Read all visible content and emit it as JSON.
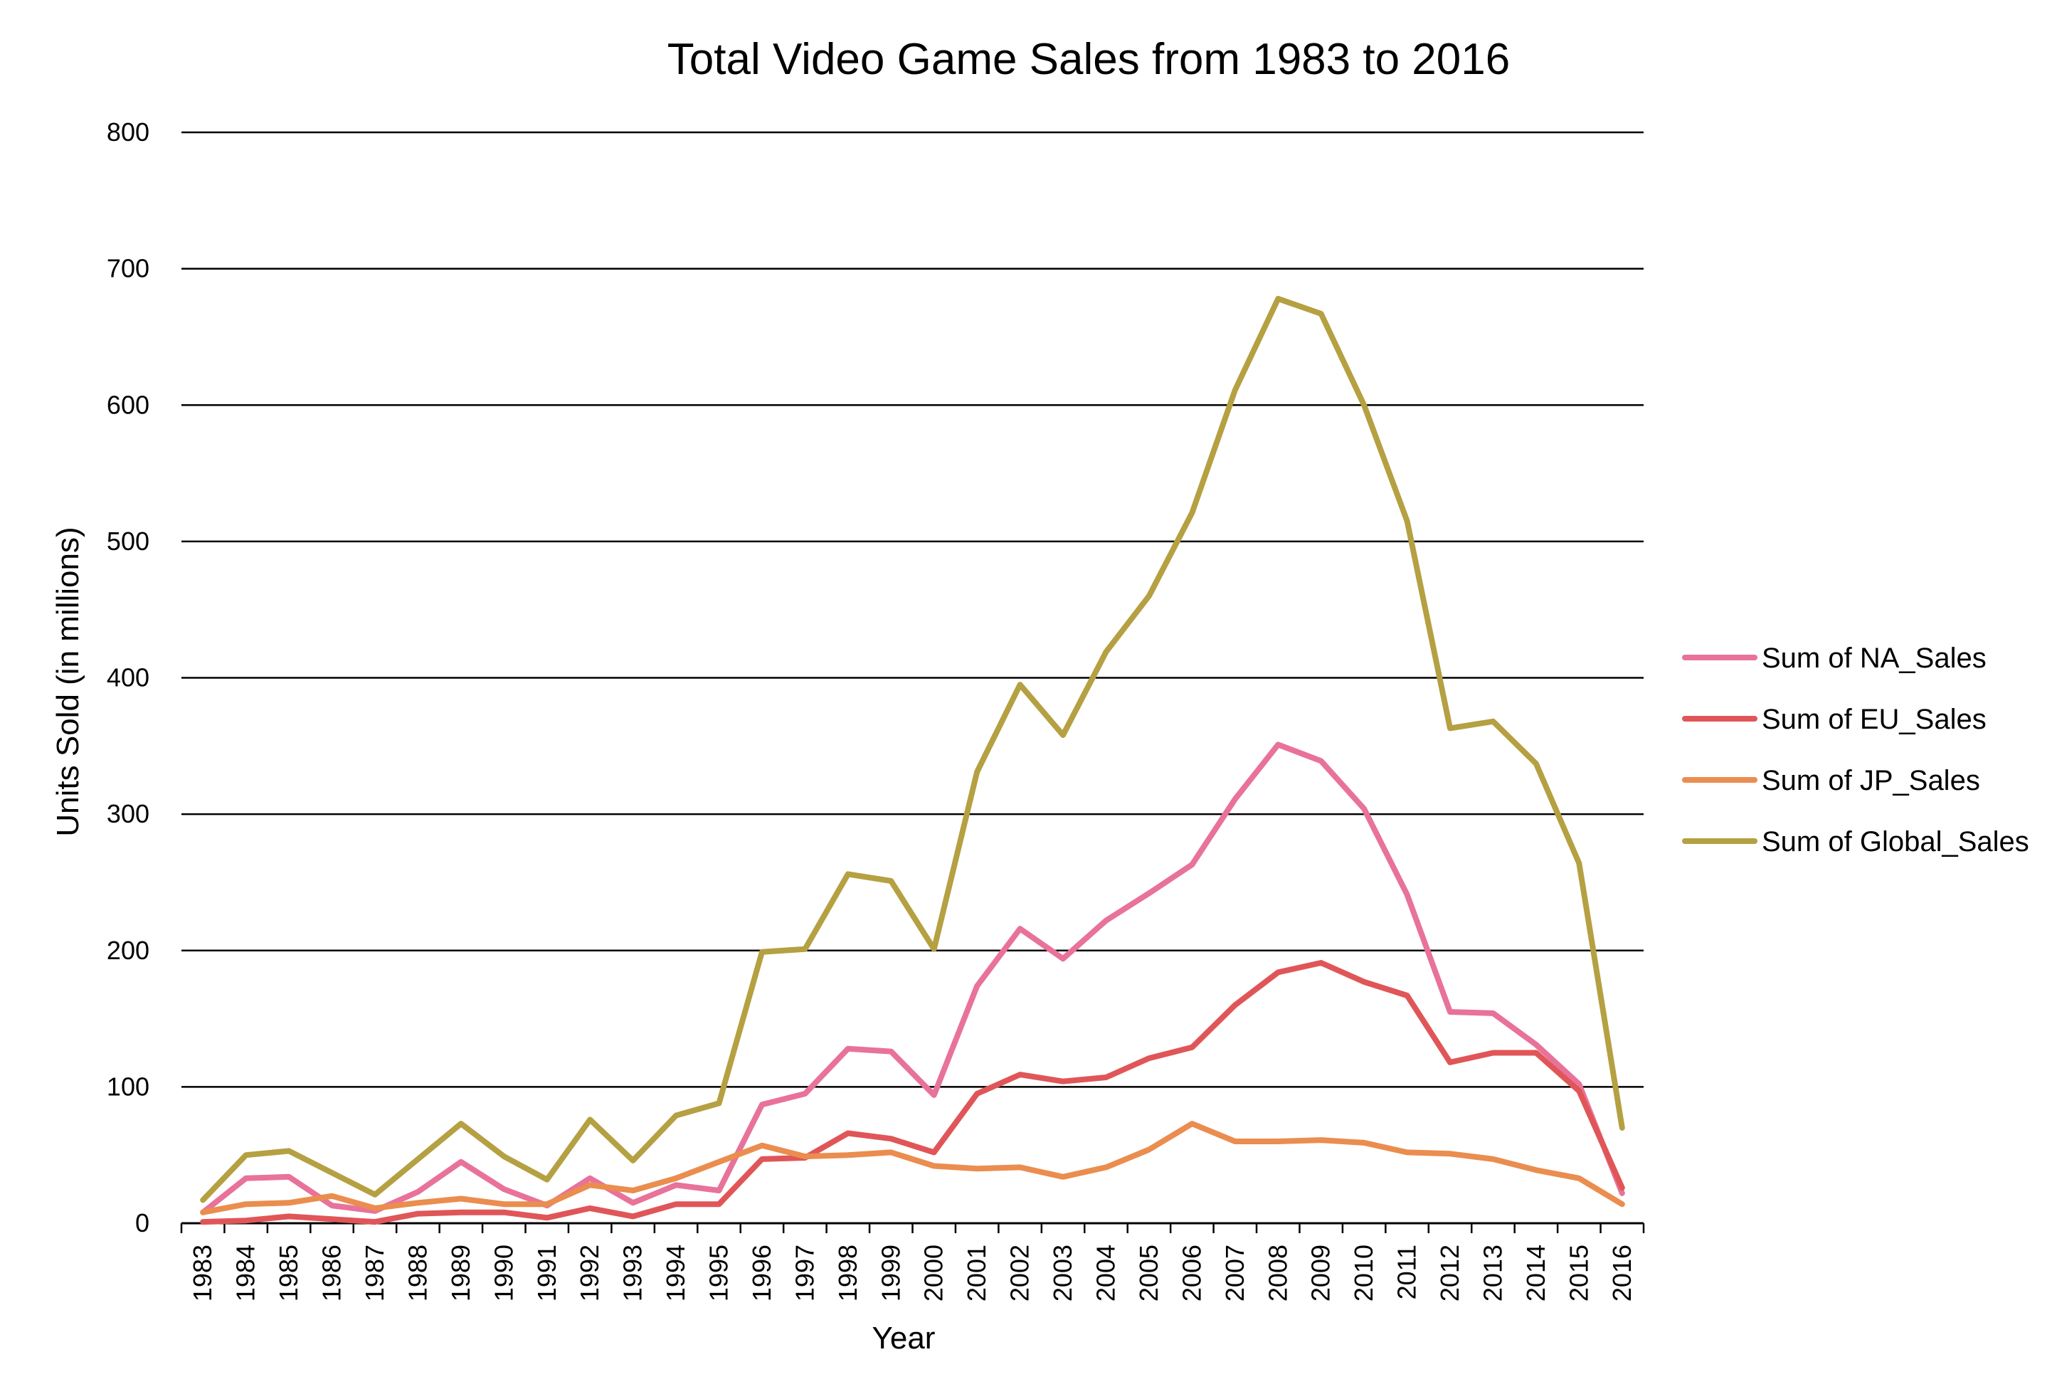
{
  "chart_data": {
    "type": "line",
    "title": "Total Video Game Sales from 1983 to 2016",
    "xlabel": "Year",
    "ylabel": "Units Sold (in millions)",
    "ylim": [
      0,
      800
    ],
    "yticks": [
      0,
      100,
      200,
      300,
      400,
      500,
      600,
      700,
      800
    ],
    "grid": "horizontal",
    "legend_position": "right",
    "categories": [
      "1983",
      "1984",
      "1985",
      "1986",
      "1987",
      "1988",
      "1989",
      "1990",
      "1991",
      "1992",
      "1993",
      "1994",
      "1995",
      "1996",
      "1997",
      "1998",
      "1999",
      "2000",
      "2001",
      "2002",
      "2003",
      "2004",
      "2005",
      "2006",
      "2007",
      "2008",
      "2009",
      "2010",
      "2011",
      "2012",
      "2013",
      "2014",
      "2015",
      "2016"
    ],
    "series": [
      {
        "name": "Sum of NA_Sales",
        "color": "#E8729A",
        "values": [
          8,
          33,
          34,
          13,
          9,
          23,
          45,
          25,
          13,
          33,
          15,
          28,
          24,
          87,
          95,
          128,
          126,
          94,
          174,
          216,
          194,
          222,
          242,
          263,
          311,
          351,
          339,
          304,
          241,
          155,
          154,
          131,
          102,
          22
        ]
      },
      {
        "name": "Sum of EU_Sales",
        "color": "#E05658",
        "values": [
          1,
          2,
          5,
          3,
          1,
          7,
          8,
          8,
          4,
          11,
          5,
          14,
          14,
          47,
          48,
          66,
          62,
          52,
          95,
          109,
          104,
          107,
          121,
          129,
          160,
          184,
          191,
          177,
          167,
          118,
          125,
          125,
          97,
          26
        ]
      },
      {
        "name": "Sum of JP_Sales",
        "color": "#EA8D4F",
        "values": [
          8,
          14,
          15,
          20,
          11,
          15,
          18,
          14,
          14,
          28,
          24,
          33,
          45,
          57,
          49,
          50,
          52,
          42,
          40,
          41,
          34,
          41,
          54,
          73,
          60,
          60,
          61,
          59,
          52,
          51,
          47,
          39,
          33,
          14
        ]
      },
      {
        "name": "Sum of Global_Sales",
        "color": "#B5A042",
        "values": [
          17,
          50,
          53,
          37,
          21,
          47,
          73,
          49,
          32,
          76,
          46,
          79,
          88,
          199,
          201,
          256,
          251,
          201,
          331,
          395,
          358,
          419,
          460,
          521,
          611,
          678,
          667,
          600,
          515,
          363,
          368,
          337,
          264,
          70
        ]
      }
    ]
  }
}
